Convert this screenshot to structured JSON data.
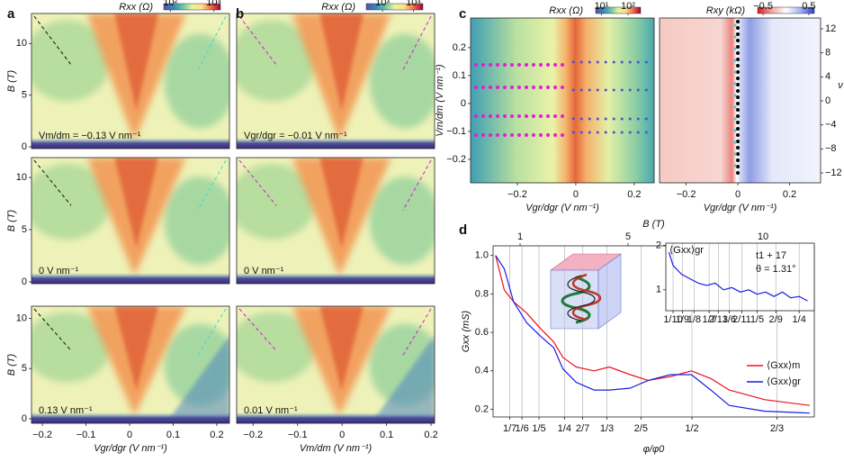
{
  "chart_data": [
    {
      "type": "heatmap",
      "panel": "a",
      "colorbar": {
        "label": "Rxx (Ω)",
        "ticks": [
          {
            "value": 100,
            "label": "10²"
          },
          {
            "value": 10000,
            "label": "10⁴"
          }
        ],
        "lim": [
          50,
          20000
        ],
        "log": true,
        "colors": [
          "#5e4fa2",
          "#3288bd",
          "#66c2a5",
          "#e6f598",
          "#fee08b",
          "#f46d43",
          "#9e0142"
        ]
      },
      "ylabel": "B (T)",
      "xlim": [
        -0.225,
        0.229
      ],
      "ylim": [
        -0.17,
        12.9
      ],
      "yticks": [
        0,
        5,
        10
      ],
      "annotation": "Vm/dm = −0.13 V nm⁻¹"
    },
    {
      "type": "heatmap",
      "ylabel": "B (T)",
      "xlim": [
        -0.225,
        0.229
      ],
      "ylim": [
        -0.17,
        11.9
      ],
      "yticks": [
        0,
        5,
        10
      ],
      "annotation": "0 V nm⁻¹"
    },
    {
      "type": "heatmap",
      "ylabel": "B (T)",
      "xlim": [
        -0.225,
        0.229
      ],
      "ylim": [
        -0.45,
        11.2
      ],
      "yticks": [
        0,
        5,
        10
      ],
      "xticks": [
        {
          "value": -0.2,
          "label": "−0.2"
        },
        {
          "value": -0.1,
          "label": "−0.1"
        },
        0,
        0.1,
        0.2
      ],
      "xlabel": "Vgr/dgr (V nm⁻¹)",
      "annotation": "0.13 V nm⁻¹"
    },
    {
      "type": "heatmap",
      "panel": "b",
      "colorbar": {
        "label": "Rxx (Ω)",
        "ticks": [
          {
            "value": 1000,
            "label": "10³"
          },
          {
            "value": 10000,
            "label": "10⁴"
          }
        ],
        "lim": [
          300,
          20000
        ],
        "log": true,
        "colors": [
          "#5e4fa2",
          "#3288bd",
          "#66c2a5",
          "#e6f598",
          "#fee08b",
          "#f46d43",
          "#9e0142"
        ]
      },
      "xlim": [
        -0.237,
        0.208
      ],
      "ylim": [
        -0.17,
        12.9
      ],
      "annotation": "Vgr/dgr = −0.01 V nm⁻¹"
    },
    {
      "type": "heatmap",
      "xlim": [
        -0.237,
        0.208
      ],
      "ylim": [
        -0.17,
        11.9
      ],
      "annotation": "0 V nm⁻¹"
    },
    {
      "type": "heatmap",
      "xlim": [
        -0.237,
        0.208
      ],
      "ylim": [
        -0.45,
        11.2
      ],
      "xticks": [
        {
          "value": -0.2,
          "label": "−0.2"
        },
        {
          "value": -0.1,
          "label": "−0.1"
        },
        0,
        0.1,
        0.2
      ],
      "xlabel": "Vm/dm (V nm⁻¹)",
      "annotation": "0.01 V nm⁻¹"
    },
    {
      "type": "heatmap",
      "panel": "c",
      "colorbar": {
        "label": "Rxx (Ω)",
        "ticks": [
          {
            "value": 10,
            "label": "10¹"
          },
          {
            "value": 100,
            "label": "10²"
          }
        ],
        "lim": [
          6,
          300
        ],
        "log": true,
        "colors": [
          "#5e4fa2",
          "#3288bd",
          "#66c2a5",
          "#e6f598",
          "#fee08b",
          "#f46d43",
          "#9e0142"
        ]
      },
      "xlim": [
        -0.36,
        0.268
      ],
      "ylim": [
        -0.284,
        0.306
      ],
      "xticks": [
        {
          "value": -0.2,
          "label": "−0.2"
        },
        0,
        0.2
      ],
      "yticks": [
        {
          "value": -0.2,
          "label": "−0.2"
        },
        {
          "value": -0.1,
          "label": "−0.1"
        },
        0,
        0.1,
        0.2
      ],
      "xlabel": "Vgr/dgr (V nm⁻¹)",
      "ylabel": "Vm/dm (V nm⁻¹)"
    },
    {
      "type": "heatmap",
      "colorbar": {
        "label": "Rxy (kΩ)",
        "ticks": [
          {
            "value": -0.5,
            "label": "−0.5"
          },
          0.5
        ],
        "lim": [
          -0.62,
          0.62
        ],
        "log": false,
        "colors": [
          "#d7191c",
          "#f4a6a0",
          "#ffffff",
          "#a6b4ee",
          "#2b3fd0"
        ]
      },
      "xlim": [
        -0.303,
        0.32
      ],
      "ylim": [
        -0.284,
        0.306
      ],
      "xticks": [
        {
          "value": -0.2,
          "label": "−0.2"
        },
        0,
        0.2
      ],
      "y2lim": [
        -13.65,
        13.8
      ],
      "y2ticks": [
        12,
        8,
        4,
        0,
        {
          "value": -4,
          "label": "−4"
        },
        {
          "value": -8,
          "label": "−8"
        },
        {
          "value": -12,
          "label": "−12"
        }
      ],
      "y2label": "ν",
      "xlabel": "Vgr/dgr (V nm⁻¹)"
    },
    {
      "type": "line",
      "panel": "d",
      "xlabel": "φ/φ0",
      "ylabel": "Gxx (mS)",
      "x2label": "B (T)",
      "xlim": [
        0.11,
        0.74
      ],
      "ylim": [
        0.16,
        1.05
      ],
      "x2lim": [
        0,
        11.9
      ],
      "xticks": [
        {
          "value": 0.1429,
          "label": "1/7"
        },
        {
          "value": 0.1667,
          "label": "1/6"
        },
        {
          "value": 0.2,
          "label": "1/5"
        },
        {
          "value": 0.25,
          "label": "1/4"
        },
        {
          "value": 0.2857,
          "label": "2/7"
        },
        {
          "value": 0.3333,
          "label": "1/3"
        },
        {
          "value": 0.4,
          "label": "2/5"
        },
        {
          "value": 0.5,
          "label": "1/2"
        },
        {
          "value": 0.6667,
          "label": "2/3"
        }
      ],
      "yticks": [
        0.2,
        0.4,
        0.6,
        0.8,
        {
          "value": 1.0,
          "label": "1.0"
        }
      ],
      "x2ticks": [
        1,
        5,
        10
      ],
      "grid": true,
      "legend": "lower right",
      "x": [
        0.115,
        0.132,
        0.15,
        0.176,
        0.203,
        0.229,
        0.247,
        0.273,
        0.308,
        0.338,
        0.379,
        0.414,
        0.458,
        0.499,
        0.537,
        0.573,
        0.643,
        0.731
      ],
      "series": [
        {
          "name": "⟨Gxx⟩m",
          "color": "#e8141c",
          "values": [
            1.0,
            0.82,
            0.76,
            0.7,
            0.62,
            0.55,
            0.47,
            0.42,
            0.4,
            0.42,
            0.38,
            0.35,
            0.37,
            0.4,
            0.36,
            0.3,
            0.25,
            0.22
          ]
        },
        {
          "name": "⟨Gxx⟩gr",
          "color": "#1c1ce0",
          "values": [
            1.0,
            0.93,
            0.76,
            0.65,
            0.58,
            0.52,
            0.41,
            0.34,
            0.3,
            0.3,
            0.31,
            0.35,
            0.38,
            0.38,
            0.3,
            0.22,
            0.19,
            0.18
          ]
        }
      ]
    },
    {
      "type": "line",
      "ylabel": "⟨Gxx⟩gr",
      "annotations": [
        "t1 + 17",
        "θ = 1.31°"
      ],
      "xlim": [
        0.0914,
        0.268
      ],
      "ylim": [
        0.53,
        2.05
      ],
      "xticks": [
        {
          "value": 0.1,
          "label": "1/10"
        },
        {
          "value": 0.1111,
          "label": "1/9"
        },
        {
          "value": 0.125,
          "label": "1/8"
        },
        {
          "value": 0.1429,
          "label": "1/7"
        },
        {
          "value": 0.1538,
          "label": "2/13"
        },
        {
          "value": 0.1667,
          "label": "1/6"
        },
        {
          "value": 0.1818,
          "label": "2/11"
        },
        {
          "value": 0.2,
          "label": "1/5"
        },
        {
          "value": 0.2222,
          "label": "2/9"
        },
        {
          "value": 0.25,
          "label": "1/4"
        }
      ],
      "yticks": [
        1,
        2
      ],
      "grid": true,
      "x": [
        0.095,
        0.1,
        0.11,
        0.12,
        0.13,
        0.14,
        0.15,
        0.16,
        0.17,
        0.18,
        0.19,
        0.2,
        0.21,
        0.22,
        0.23,
        0.24,
        0.25,
        0.26
      ],
      "series": [
        {
          "color": "#1c1ce0",
          "values": [
            1.85,
            1.55,
            1.35,
            1.25,
            1.15,
            1.1,
            1.15,
            1.0,
            1.05,
            0.95,
            1.0,
            0.9,
            0.95,
            0.85,
            0.95,
            0.82,
            0.85,
            0.75
          ]
        }
      ]
    }
  ]
}
